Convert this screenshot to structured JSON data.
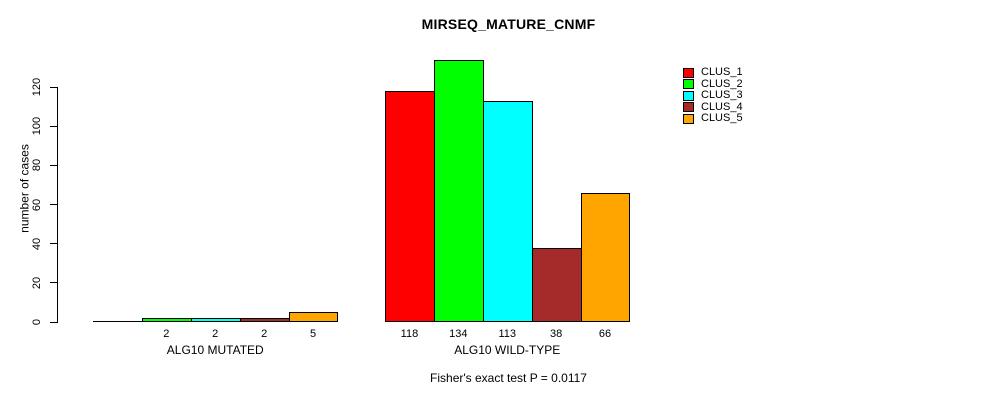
{
  "chart_data": {
    "type": "bar",
    "title": "MIRSEQ_MATURE_CNMF",
    "ylabel": "number of cases",
    "xlabel": "",
    "annotation": "Fisher's exact test P = 0.0117",
    "ylim": [
      0,
      134
    ],
    "yticks": [
      0,
      20,
      40,
      60,
      80,
      100,
      120
    ],
    "grid": false,
    "legend_position": "top-right",
    "bar_value_labels_shown": true,
    "zero_value_labels_hidden": true,
    "categories": [
      "ALG10 MUTATED",
      "ALG10 WILD-TYPE"
    ],
    "series": [
      {
        "name": "CLUS_1",
        "color": "#FF0000",
        "values": [
          0,
          118
        ]
      },
      {
        "name": "CLUS_2",
        "color": "#00FF00",
        "values": [
          2,
          134
        ]
      },
      {
        "name": "CLUS_3",
        "color": "#00FFFF",
        "values": [
          2,
          113
        ]
      },
      {
        "name": "CLUS_4",
        "color": "#A52A2A",
        "values": [
          2,
          38
        ]
      },
      {
        "name": "CLUS_5",
        "color": "#FFA500",
        "values": [
          5,
          66
        ]
      }
    ],
    "colors": {
      "axis": "#000000",
      "text": "#000000",
      "background": "#FFFFFF"
    }
  }
}
